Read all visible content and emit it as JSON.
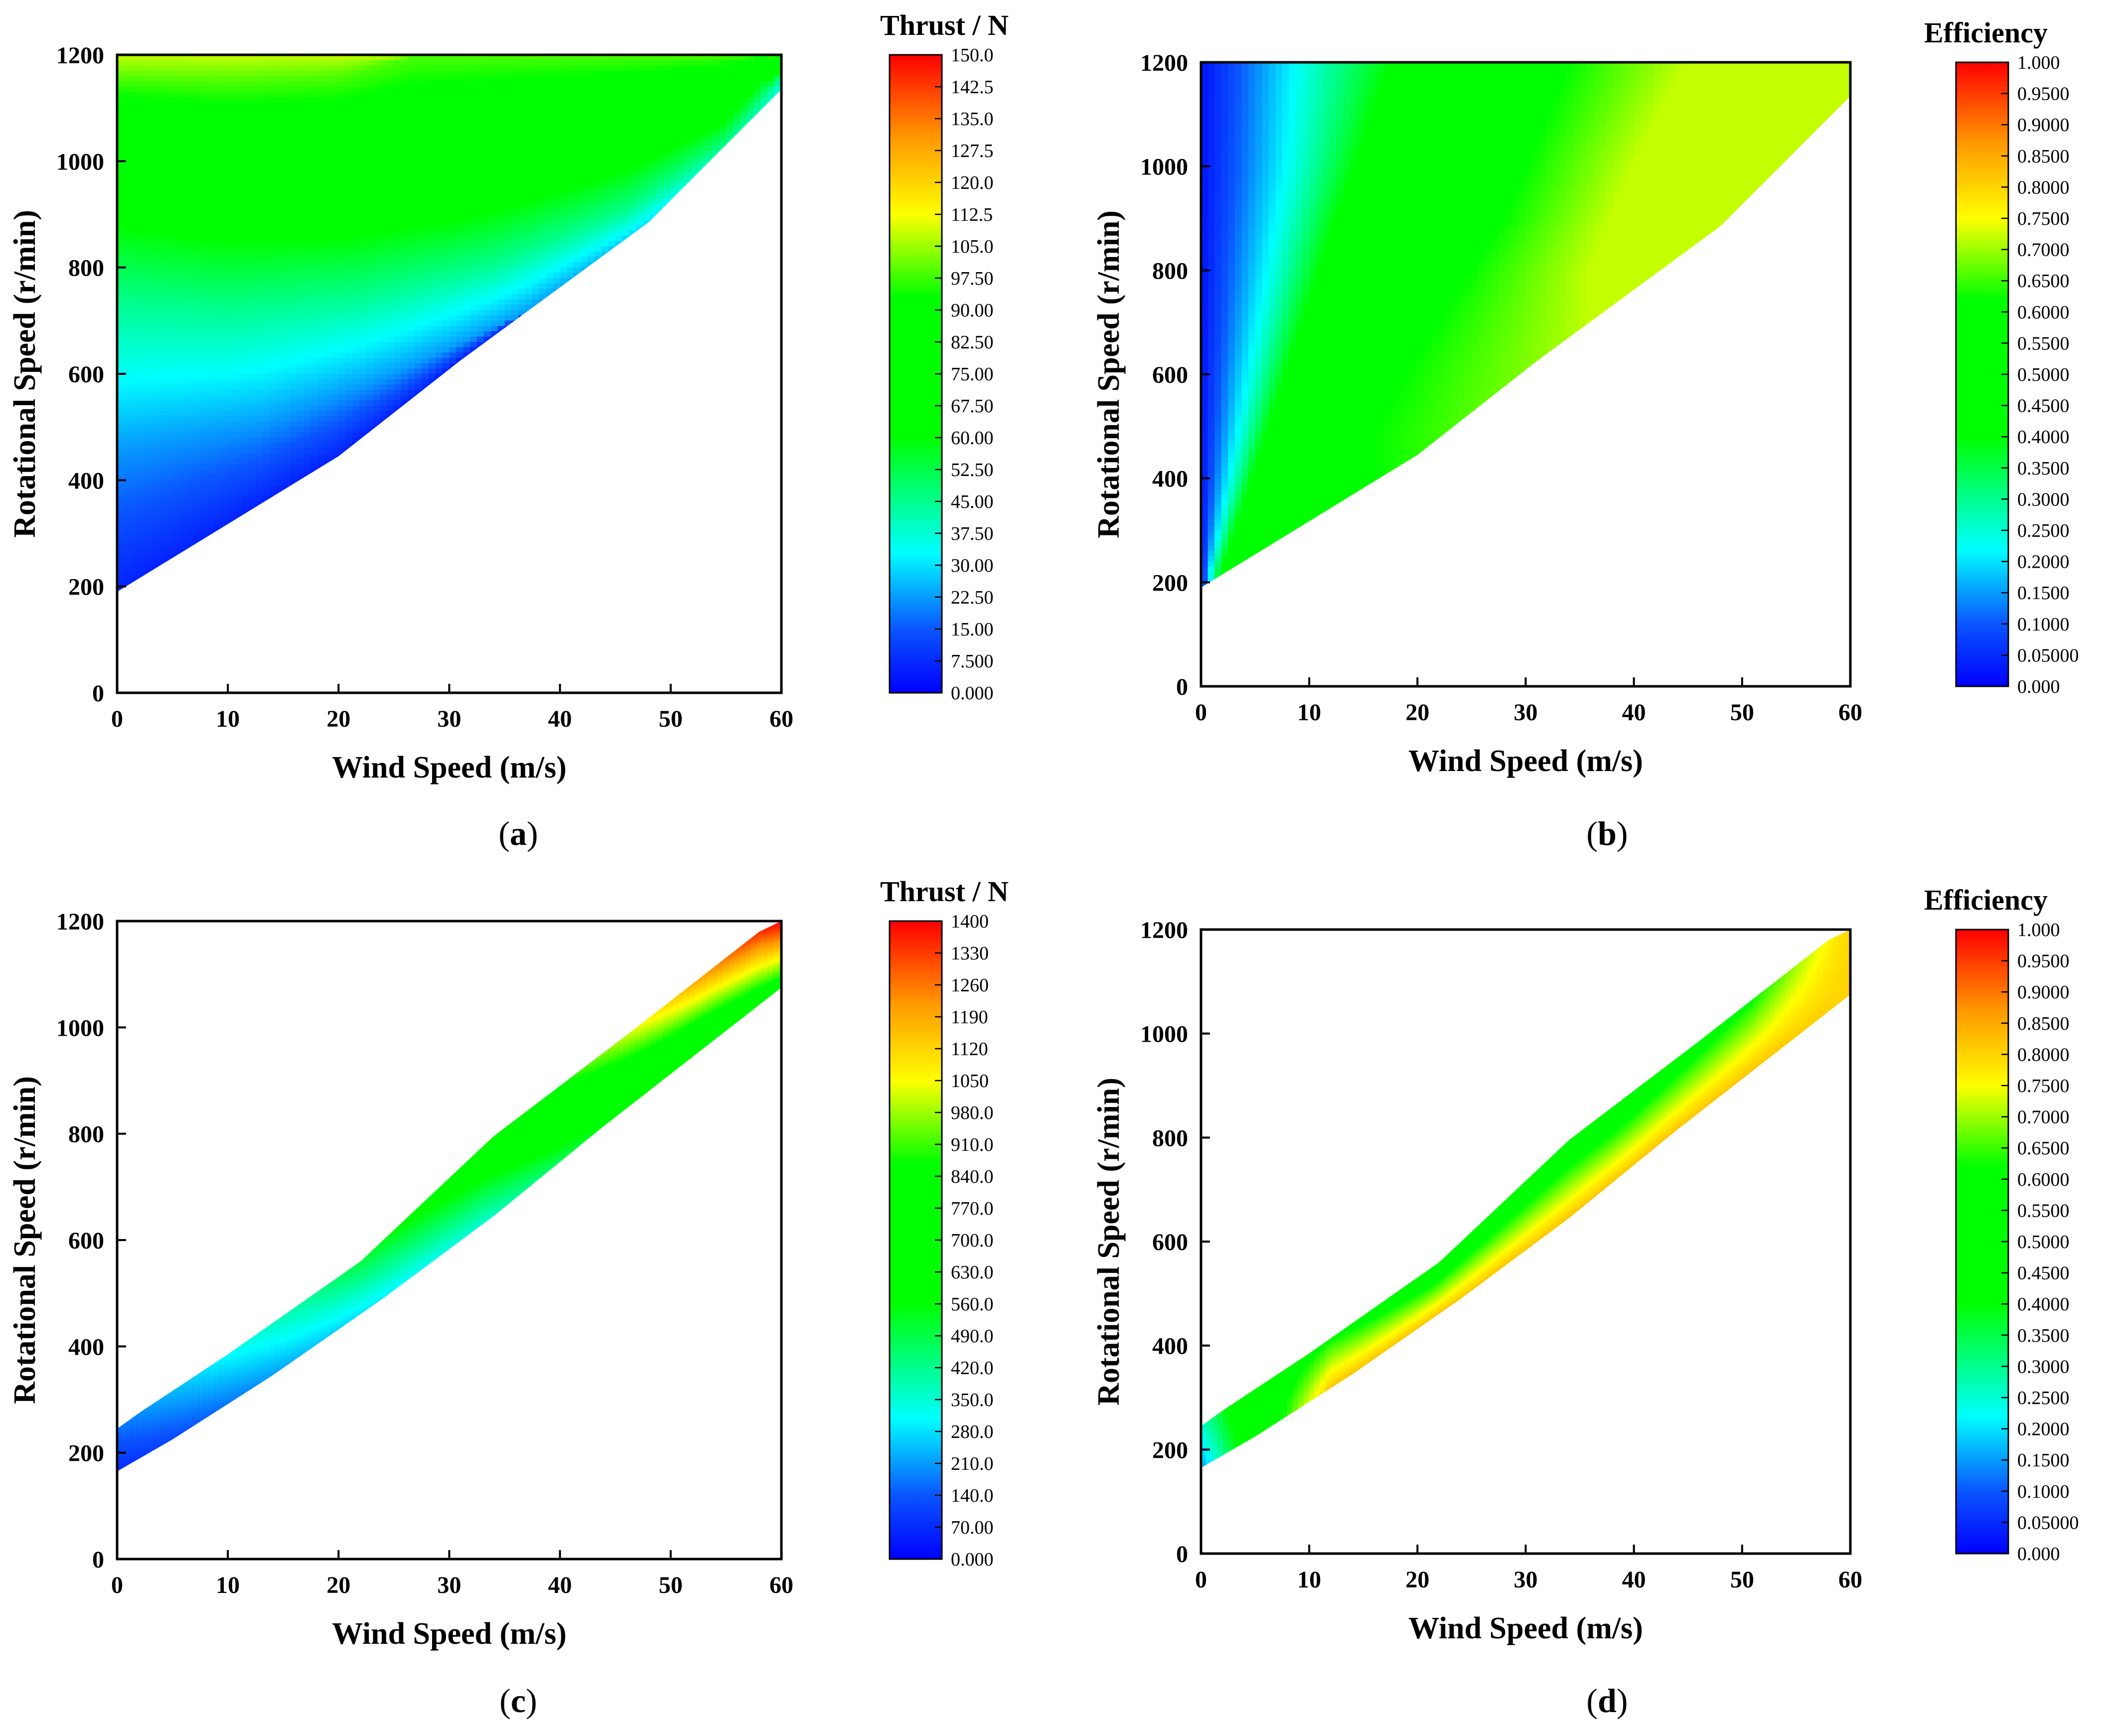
{
  "chart_data": [
    {
      "type": "heatmap",
      "panel_label": "a",
      "xlabel": "Wind Speed (m/s)",
      "ylabel": "Rotational Speed (r/min)",
      "xlim": [
        0,
        60
      ],
      "ylim": [
        0,
        1200
      ],
      "xticks": [
        "0",
        "10",
        "20",
        "30",
        "40",
        "50",
        "60"
      ],
      "yticks": [
        "0",
        "200",
        "400",
        "600",
        "800",
        "1000",
        "1200"
      ],
      "colorbar": {
        "title": "Thrust / N",
        "range": [
          0,
          150
        ],
        "ticks": [
          "150.0",
          "142.5",
          "135.0",
          "127.5",
          "120.0",
          "112.5",
          "105.0",
          "97.50",
          "90.00",
          "82.50",
          "75.00",
          "67.50",
          "60.00",
          "52.50",
          "45.00",
          "37.50",
          "30.00",
          "22.50",
          "15.00",
          "7.500",
          "0.000"
        ]
      },
      "region": {
        "lower_boundary": [
          [
            0,
            190
          ],
          [
            20,
            445
          ],
          [
            31,
            625
          ],
          [
            48,
            885
          ],
          [
            60,
            1135
          ]
        ],
        "upper_boundary": [
          [
            0,
            1200
          ],
          [
            60,
            1200
          ]
        ]
      },
      "contours": [
        {
          "level_norm": 0.66,
          "points": [
            [
              0,
              1155
            ],
            [
              10,
              1150
            ],
            [
              20,
              1160
            ],
            [
              27,
              1200
            ]
          ]
        },
        {
          "level_norm": 0.5,
          "points": [
            [
              0,
              1020
            ],
            [
              8,
              985
            ],
            [
              18,
              970
            ],
            [
              30,
              990
            ],
            [
              42,
              1040
            ],
            [
              54,
              1110
            ],
            [
              59,
              1200
            ]
          ]
        },
        {
          "level_norm": 0.3,
          "points": [
            [
              0,
              735
            ],
            [
              10,
              720
            ],
            [
              22,
              745
            ],
            [
              34,
              805
            ],
            [
              46,
              905
            ],
            [
              55,
              1030
            ],
            [
              60,
              1160
            ]
          ]
        },
        {
          "level_norm": 0.15,
          "points": [
            [
              0,
              460
            ],
            [
              13,
              505
            ],
            [
              25,
              600
            ],
            [
              37,
              715
            ],
            [
              48,
              860
            ],
            [
              57,
              1000
            ],
            [
              60,
              1100
            ]
          ]
        }
      ],
      "value_extremes": {
        "min_approx": 5,
        "max_approx": 105
      }
    },
    {
      "type": "heatmap",
      "panel_label": "b",
      "xlabel": "Wind Speed (m/s)",
      "ylabel": "Rotational Speed (r/min)",
      "xlim": [
        0,
        60
      ],
      "ylim": [
        0,
        1200
      ],
      "xticks": [
        "0",
        "10",
        "20",
        "30",
        "40",
        "50",
        "60"
      ],
      "yticks": [
        "0",
        "200",
        "400",
        "600",
        "800",
        "1000",
        "1200"
      ],
      "colorbar": {
        "title": "Efficiency",
        "range": [
          0,
          1
        ],
        "ticks": [
          "1.000",
          "0.9500",
          "0.9000",
          "0.8500",
          "0.8000",
          "0.7500",
          "0.7000",
          "0.6500",
          "0.6000",
          "0.5500",
          "0.5000",
          "0.4500",
          "0.4000",
          "0.3500",
          "0.3000",
          "0.2500",
          "0.2000",
          "0.1500",
          "0.1000",
          "0.05000",
          "0.000"
        ]
      },
      "region": {
        "lower_boundary": [
          [
            0,
            190
          ],
          [
            20,
            445
          ],
          [
            31,
            625
          ],
          [
            48,
            885
          ],
          [
            60,
            1135
          ]
        ],
        "upper_boundary": [
          [
            0,
            1200
          ],
          [
            60,
            1200
          ]
        ]
      },
      "contours": [
        {
          "level_norm": 0.25,
          "points": [
            [
              1,
              220
            ],
            [
              3,
              400
            ],
            [
              6,
              700
            ],
            [
              9,
              1000
            ],
            [
              10,
              1200
            ]
          ]
        },
        {
          "level_norm": 0.45,
          "points": [
            [
              2,
              215
            ],
            [
              7,
              500
            ],
            [
              14,
              900
            ],
            [
              20,
              1200
            ]
          ]
        },
        {
          "level_norm": 0.62,
          "points": [
            [
              16,
              490
            ],
            [
              19,
              610
            ],
            [
              28,
              900
            ],
            [
              34,
              1200
            ]
          ]
        },
        {
          "level_norm": 0.72,
          "points": [
            [
              36,
              800
            ],
            [
              40,
              1000
            ],
            [
              45,
              1200
            ]
          ]
        }
      ],
      "value_extremes": {
        "min_approx": 0.02,
        "max_approx": 0.72
      }
    },
    {
      "type": "heatmap",
      "panel_label": "c",
      "xlabel": "Wind Speed (m/s)",
      "ylabel": "Rotational Speed (r/min)",
      "xlim": [
        0,
        60
      ],
      "ylim": [
        0,
        1200
      ],
      "xticks": [
        "0",
        "10",
        "20",
        "30",
        "40",
        "50",
        "60"
      ],
      "yticks": [
        "0",
        "200",
        "400",
        "600",
        "800",
        "1000",
        "1200"
      ],
      "colorbar": {
        "title": "Thrust / N",
        "range": [
          0,
          1400
        ],
        "ticks": [
          "1400",
          "1330",
          "1260",
          "1190",
          "1120",
          "1050",
          "980.0",
          "910.0",
          "840.0",
          "770.0",
          "700.0",
          "630.0",
          "560.0",
          "490.0",
          "420.0",
          "350.0",
          "280.0",
          "210.0",
          "140.0",
          "70.00",
          "0.000"
        ]
      },
      "region": {
        "lower_boundary": [
          [
            0,
            165
          ],
          [
            5,
            225
          ],
          [
            14,
            345
          ],
          [
            24,
            490
          ],
          [
            34,
            645
          ],
          [
            44,
            815
          ],
          [
            52,
            945
          ],
          [
            60,
            1075
          ]
        ],
        "upper_boundary": [
          [
            0,
            245
          ],
          [
            2,
            275
          ],
          [
            10,
            385
          ],
          [
            22,
            560
          ],
          [
            34,
            795
          ],
          [
            46,
            985
          ],
          [
            58,
            1180
          ],
          [
            60,
            1200
          ]
        ]
      },
      "band_colors_norm": [
        {
          "t": 0.0,
          "value_norm_start": 0.05,
          "value_norm_end": 0.12
        },
        {
          "t": 0.3,
          "value_norm_start": 0.18,
          "value_norm_end": 0.3
        },
        {
          "t": 0.55,
          "value_norm_start": 0.25,
          "value_norm_end": 0.5
        },
        {
          "t": 0.75,
          "value_norm_start": 0.4,
          "value_norm_end": 0.7
        },
        {
          "t": 0.9,
          "value_norm_start": 0.45,
          "value_norm_end": 0.88
        },
        {
          "t": 1.0,
          "value_norm_start": 0.55,
          "value_norm_end": 1.0
        }
      ],
      "value_extremes": {
        "min_approx": 70,
        "max_approx": 1400
      }
    },
    {
      "type": "heatmap",
      "panel_label": "d",
      "xlabel": "Wind Speed (m/s)",
      "ylabel": "Rotational Speed (r/min)",
      "xlim": [
        0,
        60
      ],
      "ylim": [
        0,
        1200
      ],
      "xticks": [
        "0",
        "10",
        "20",
        "30",
        "40",
        "50",
        "60"
      ],
      "yticks": [
        "0",
        "200",
        "400",
        "600",
        "800",
        "1000",
        "1200"
      ],
      "colorbar": {
        "title": "Efficiency",
        "range": [
          0,
          1
        ],
        "ticks": [
          "1.000",
          "0.9500",
          "0.9000",
          "0.8500",
          "0.8000",
          "0.7500",
          "0.7000",
          "0.6500",
          "0.6000",
          "0.5500",
          "0.5000",
          "0.4500",
          "0.4000",
          "0.3500",
          "0.3000",
          "0.2500",
          "0.2000",
          "0.1500",
          "0.1000",
          "0.05000",
          "0.000"
        ]
      },
      "region": {
        "lower_boundary": [
          [
            0,
            165
          ],
          [
            5,
            225
          ],
          [
            14,
            345
          ],
          [
            24,
            490
          ],
          [
            34,
            645
          ],
          [
            44,
            815
          ],
          [
            52,
            945
          ],
          [
            60,
            1075
          ]
        ],
        "upper_boundary": [
          [
            0,
            245
          ],
          [
            2,
            275
          ],
          [
            10,
            385
          ],
          [
            22,
            560
          ],
          [
            34,
            795
          ],
          [
            46,
            985
          ],
          [
            58,
            1180
          ],
          [
            60,
            1200
          ]
        ]
      },
      "band_colors_norm": [
        {
          "t": 0.0,
          "value_norm_start": 0.15,
          "value_norm_end": 0.25
        },
        {
          "t": 0.08,
          "value_norm_start": 0.5,
          "value_norm_end": 0.55
        },
        {
          "t": 0.2,
          "value_norm_start": 0.82,
          "value_norm_end": 0.62
        },
        {
          "t": 0.35,
          "value_norm_start": 0.82,
          "value_norm_end": 0.52
        },
        {
          "t": 0.65,
          "value_norm_start": 0.82,
          "value_norm_end": 0.52
        },
        {
          "t": 0.85,
          "value_norm_start": 0.82,
          "value_norm_end": 0.62
        },
        {
          "t": 1.0,
          "value_norm_start": 0.8,
          "value_norm_end": 0.8
        }
      ],
      "value_extremes": {
        "min_approx": 0.15,
        "max_approx": 0.82
      }
    }
  ],
  "colors": {
    "axis": "#000000",
    "background": "#ffffff",
    "colormap_stops": [
      {
        "v": 0.0,
        "c": "#0000ff"
      },
      {
        "v": 0.1,
        "c": "#0a55ff"
      },
      {
        "v": 0.22,
        "c": "#00ffff"
      },
      {
        "v": 0.4,
        "c": "#00ff00"
      },
      {
        "v": 0.62,
        "c": "#00ff00"
      },
      {
        "v": 0.75,
        "c": "#ffff00"
      },
      {
        "v": 0.87,
        "c": "#ff9900"
      },
      {
        "v": 1.0,
        "c": "#ff0000"
      }
    ]
  }
}
